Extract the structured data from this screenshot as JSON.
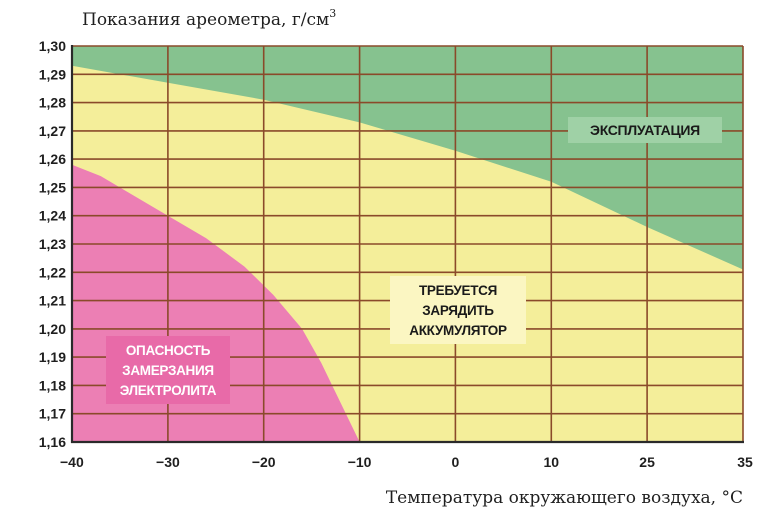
{
  "chart_data": {
    "type": "area",
    "ylabel": "Показания ареометра, г/см",
    "ylabel_sup": "3",
    "xlabel": "Температура окружающего воздуха, °С",
    "x_ticks": [
      "−40",
      "−30",
      "−20",
      "−10",
      "0",
      "10",
      "25",
      "35"
    ],
    "x_values": [
      -40,
      -30,
      -20,
      -10,
      0,
      10,
      25,
      35
    ],
    "y_ticks": [
      "1,16",
      "1,17",
      "1,18",
      "1,19",
      "1,20",
      "1,21",
      "1,22",
      "1,23",
      "1,24",
      "1,25",
      "1,26",
      "1,27",
      "1,28",
      "1,29",
      "1,30"
    ],
    "ylim": [
      1.16,
      1.3
    ],
    "grid": true,
    "regions": [
      {
        "name": "danger",
        "lines": [
          "ОПАСНОСТЬ",
          "ЗАМЕРЗАНИЯ",
          "ЭЛЕКТРОЛИТА"
        ],
        "color": "#ec7fb4",
        "boundary": [
          {
            "x": -40,
            "y": 1.258
          },
          {
            "x": -37,
            "y": 1.254
          },
          {
            "x": -34,
            "y": 1.248
          },
          {
            "x": -30,
            "y": 1.24
          },
          {
            "x": -26,
            "y": 1.232
          },
          {
            "x": -22,
            "y": 1.222
          },
          {
            "x": -19,
            "y": 1.212
          },
          {
            "x": -16,
            "y": 1.2
          },
          {
            "x": -14,
            "y": 1.188
          },
          {
            "x": -12,
            "y": 1.174
          },
          {
            "x": -10,
            "y": 1.16
          }
        ]
      },
      {
        "name": "charge",
        "lines": [
          "ТРЕБУЕТСЯ",
          "ЗАРЯДИТЬ",
          "АККУМУЛЯТОР"
        ],
        "color": "#f4ee9a"
      },
      {
        "name": "operation",
        "lines": [
          "ЭКСПЛУАТАЦИЯ"
        ],
        "color": "#86c28f",
        "boundary": [
          {
            "x": -40,
            "y": 1.293
          },
          {
            "x": -30,
            "y": 1.287
          },
          {
            "x": -20,
            "y": 1.281
          },
          {
            "x": -10,
            "y": 1.273
          },
          {
            "x": 0,
            "y": 1.263
          },
          {
            "x": 10,
            "y": 1.252
          },
          {
            "x": 25,
            "y": 1.236
          },
          {
            "x": 35,
            "y": 1.221
          }
        ]
      }
    ]
  }
}
